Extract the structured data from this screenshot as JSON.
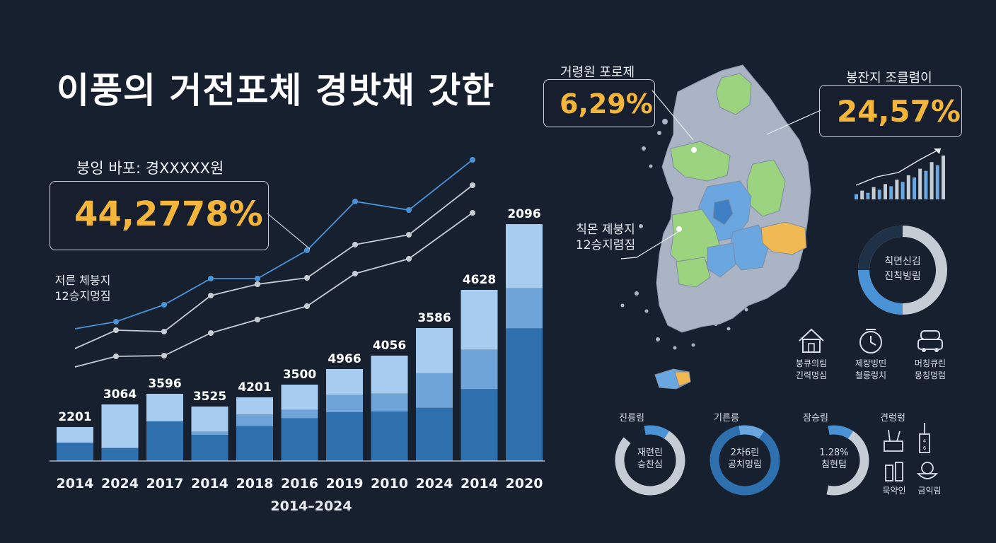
{
  "title": "이풍의 거전포체 경밧채 갓한",
  "colors": {
    "background": "#17202f",
    "accent_gold": "#f4b63a",
    "bar_light": "#a8ccef",
    "bar_mid": "#6ea4d8",
    "bar_dark": "#2e6fae",
    "line_blue": "#4a92d6",
    "line_grey": "#c6ccd4",
    "map_grey": "#aab4c4",
    "map_green": "#9bd37e",
    "map_blue": "#6aa6e0",
    "map_orange": "#f0b954"
  },
  "left_callout": {
    "label": "붕잉 바포: 경XXXXX원",
    "value": "44,2778%"
  },
  "side_label": "저른 체붕지\n12승지멍짐",
  "chart_data": {
    "type": "bar",
    "categories": [
      "2014",
      "2024",
      "2017",
      "2014",
      "2018",
      "2016",
      "2019",
      "2010",
      "2024",
      "2014",
      "2020"
    ],
    "xlabel": "2014–2024",
    "data_labels": [
      "2201",
      "3064",
      "3596",
      "3525",
      "4201",
      "3500",
      "4966",
      "4056",
      "3586",
      "4628",
      "2096"
    ],
    "series": [
      {
        "values": [
          0.54,
          0.23,
          0.59,
          0.48,
          0.55,
          0.56,
          0.53,
          0.47,
          0.4,
          0.42,
          0.56
        ]
      },
      {
        "values": [
          0.0,
          0.0,
          0.0,
          0.06,
          0.18,
          0.11,
          0.19,
          0.17,
          0.26,
          0.23,
          0.17
        ]
      },
      {
        "values": [
          0.46,
          0.77,
          0.41,
          0.46,
          0.27,
          0.33,
          0.28,
          0.36,
          0.34,
          0.35,
          0.27
        ]
      }
    ],
    "bar_totals_relative": [
      48,
      80,
      95,
      77,
      90,
      108,
      130,
      149,
      188,
      242,
      335
    ],
    "lines": [
      {
        "color": "blue",
        "values": [
          187,
          197,
          221,
          258,
          258,
          298,
          367,
          355,
          426
        ]
      },
      {
        "color": "grey",
        "values": [
          159,
          185,
          183,
          234,
          250,
          259,
          306,
          320,
          390
        ]
      },
      {
        "color": "grey",
        "values": [
          133,
          148,
          149,
          181,
          200,
          219,
          265,
          286,
          351
        ]
      }
    ]
  },
  "map": {
    "left_callout": {
      "label": "거령원 포로제",
      "value": "6,29%"
    },
    "right_callout": {
      "label": "봉잔지 조클렴이",
      "value": "24,57%"
    },
    "inner_label": "칙몬 제붕지\n12승지렴짐"
  },
  "mini_bars": [
    0.12,
    0.2,
    0.15,
    0.28,
    0.22,
    0.35,
    0.3,
    0.45,
    0.4,
    0.55,
    0.5,
    0.7,
    0.65,
    0.85,
    0.78,
    1.0
  ],
  "big_donut": {
    "label": "칙면신김\n진칙빙림",
    "fill_fraction": 0.55
  },
  "icons": [
    {
      "icon": "house-icon",
      "label": "붕큐의림\n긴력멍심"
    },
    {
      "icon": "clock-icon",
      "label": "제랑빙띤\n쳘릉렁치"
    },
    {
      "icon": "car-icon",
      "label": "머칭큐린\n몽칭멍럼"
    }
  ],
  "donuts": [
    {
      "title": "진릉림",
      "center": "재련린\n승찬심",
      "fill_fraction": 0.78
    },
    {
      "title": "기른릉",
      "center": "2차6린\n공치멍림",
      "fill_fraction": 0.92
    },
    {
      "title": "잠승림",
      "center": "1.28%\n침현텀",
      "fill_fraction": 0.45
    }
  ],
  "icon_group": {
    "title": "견렁렁",
    "items": [
      {
        "icon": "tools-icon",
        "label": ""
      },
      {
        "icon": "bottle-icon",
        "label": ""
      },
      {
        "icon": "glass-icon",
        "label": "묵약인"
      },
      {
        "icon": "bowl-icon",
        "label": "금익림"
      }
    ]
  }
}
